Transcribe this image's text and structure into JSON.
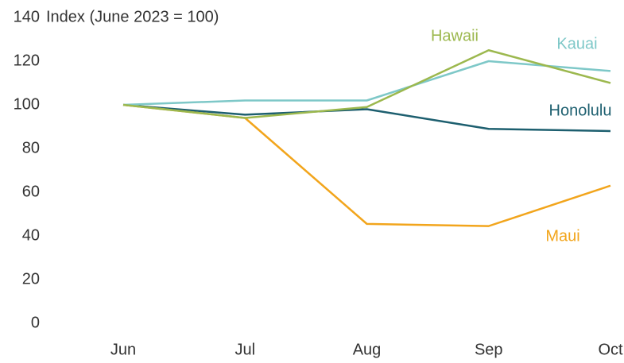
{
  "chart_data": {
    "type": "line",
    "ylabel": "Index (June 2023 = 100)",
    "categories": [
      "Jun",
      "Jul",
      "Aug",
      "Sep",
      "Oct"
    ],
    "series": [
      {
        "name": "Honolulu",
        "color": "#1d5f6f",
        "values": [
          100,
          95.5,
          98,
          89,
          88
        ]
      },
      {
        "name": "Maui",
        "color": "#f2a51c",
        "values": [
          100,
          94,
          45.5,
          44.5,
          63
        ]
      },
      {
        "name": "Kauai",
        "color": "#7ec8c8",
        "values": [
          100,
          102,
          102,
          120,
          115.5
        ]
      },
      {
        "name": "Hawaii",
        "color": "#9cb84e",
        "values": [
          100,
          94,
          99,
          125,
          110
        ]
      }
    ],
    "ylim": [
      0,
      140
    ],
    "yticks": [
      0,
      20,
      40,
      60,
      80,
      100,
      120,
      140
    ]
  }
}
